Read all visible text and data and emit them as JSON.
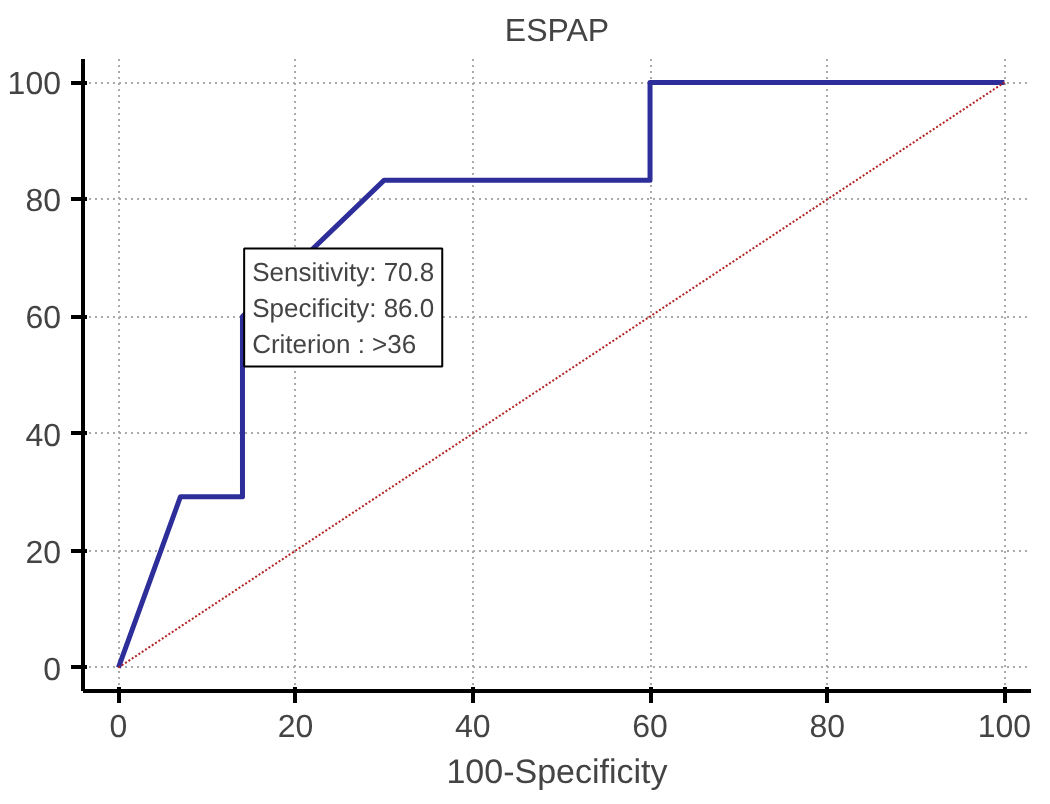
{
  "chart_data": {
    "type": "line",
    "title": "ESPAP",
    "xlabel": "100-Specificity",
    "xlim": [
      -4,
      103
    ],
    "ylim": [
      -4,
      104
    ],
    "xticks": [
      0,
      20,
      40,
      60,
      80,
      100
    ],
    "yticks": [
      0,
      20,
      40,
      60,
      80,
      100
    ],
    "grid": true,
    "series": [
      {
        "color": "#2e2e9a",
        "x": [
          0,
          7,
          14,
          14,
          30,
          60,
          60,
          100
        ],
        "values": [
          0,
          29.2,
          29.2,
          60,
          83.3,
          83.3,
          100,
          100
        ],
        "line_style": "solid"
      },
      {
        "color": "#b22222",
        "x": [
          0,
          100
        ],
        "values": [
          0,
          100
        ],
        "line_style": "dotted"
      }
    ],
    "annotations": [
      "Sensitivity: 70.8\nSpecificity: 86.0\nCriterion : >36"
    ]
  }
}
